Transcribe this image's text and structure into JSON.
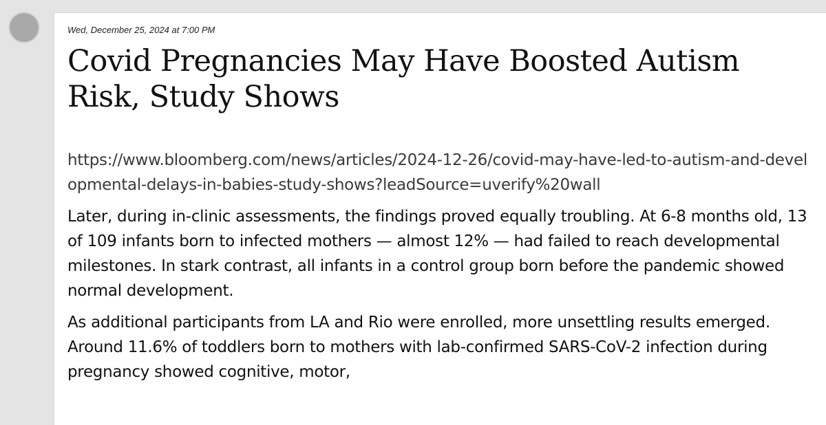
{
  "post": {
    "timestamp": "Wed, December 25, 2024 at 7:00 PM",
    "title": "Covid Pregnancies May Have Boosted Autism Risk, Study Shows",
    "link": "https://www.bloomberg.com/news/articles/2024-12-26/covid-may-have-led-to-autism-and-developmental-delays-in-babies-study-shows?leadSource=uverify%20wall",
    "paragraphs": [
      "Later, during in-clinic assessments, the findings proved equally troubling. At 6-8 months old, 13 of 109 infants born to infected mothers — almost 12% — had failed to reach developmental milestones. In stark contrast, all infants in a control group born before the pandemic showed normal development.",
      "As additional participants from LA and Rio were enrolled, more unsettling results emerged. Around 11.6% of toddlers born to mothers with lab-confirmed SARS-CoV-2 infection during pregnancy showed cognitive, motor,"
    ]
  }
}
